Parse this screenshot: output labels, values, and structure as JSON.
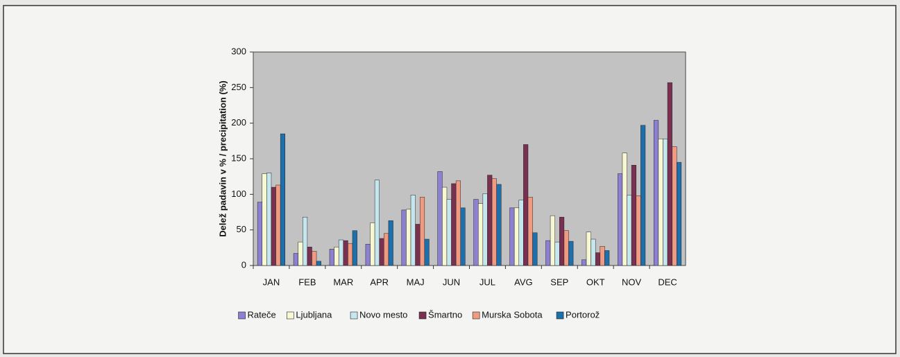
{
  "chart_data": {
    "type": "bar",
    "y_label": "Delež padavin v % / precipitation (%)",
    "categories": [
      "JAN",
      "FEB",
      "MAR",
      "APR",
      "MAJ",
      "JUN",
      "JUL",
      "AVG",
      "SEP",
      "OKT",
      "NOV",
      "DEC"
    ],
    "series": [
      {
        "name": "Rateče",
        "color": "#8c80d2",
        "values": [
          89,
          17,
          23,
          30,
          78,
          132,
          93,
          81,
          35,
          8,
          129,
          204
        ]
      },
      {
        "name": "Ljubljana",
        "color": "#f7f7d2",
        "values": [
          129,
          33,
          26,
          60,
          79,
          110,
          87,
          81,
          70,
          47,
          158,
          178
        ]
      },
      {
        "name": "Novo mesto",
        "color": "#c6e6ee",
        "values": [
          130,
          68,
          36,
          120,
          99,
          93,
          101,
          92,
          33,
          37,
          99,
          178
        ]
      },
      {
        "name": "Šmartno",
        "color": "#7a3050",
        "values": [
          110,
          26,
          35,
          38,
          58,
          115,
          127,
          170,
          68,
          18,
          141,
          257
        ]
      },
      {
        "name": "Murska Sobota",
        "color": "#f09a82",
        "values": [
          113,
          20,
          31,
          45,
          96,
          119,
          122,
          96,
          49,
          27,
          98,
          167
        ]
      },
      {
        "name": "Portorož",
        "color": "#1f70aa",
        "values": [
          185,
          6,
          49,
          63,
          37,
          81,
          114,
          46,
          34,
          21,
          197,
          145
        ]
      }
    ],
    "ylim": [
      0,
      300
    ],
    "yticks": [
      0,
      50,
      100,
      150,
      200,
      250,
      300
    ],
    "legend": "bottom"
  }
}
